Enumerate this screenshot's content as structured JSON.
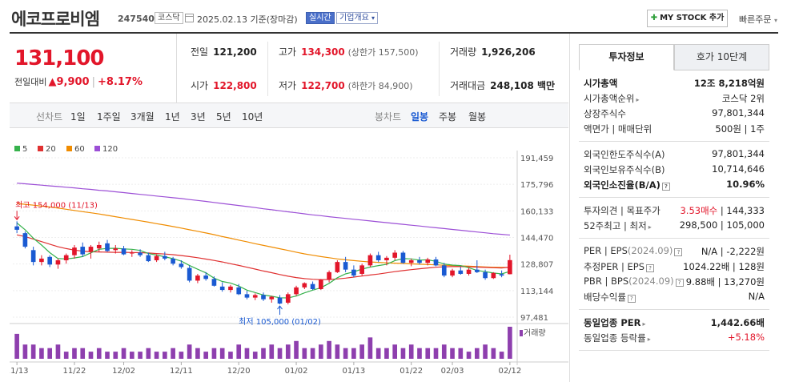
{
  "header": {
    "company_name": "에코프로비엠",
    "code": "247540",
    "market": "코스닥",
    "date_text": "2025.02.13 기준(장마감)",
    "live_badge": "실시간",
    "info_badge": "기업개요",
    "mystock_label": "MY STOCK 추가",
    "quick_order": "빠른주문"
  },
  "price": {
    "current": "131,100",
    "change_label": "전일대비",
    "change": "▲9,900",
    "change_pct": "+8.17%"
  },
  "stats": {
    "prev_close_label": "전일",
    "prev_close": "121,200",
    "high_label": "고가",
    "high": "134,300",
    "upper_limit": "(상한가 157,500)",
    "volume_label": "거래량",
    "volume": "1,926,206",
    "open_label": "시가",
    "open": "122,800",
    "low_label": "저가",
    "low": "122,700",
    "lower_limit": "(하한가 84,900)",
    "amount_label": "거래대금",
    "amount": "248,108 백만"
  },
  "period_bar": {
    "line_label": "선차트",
    "periods": [
      "1일",
      "1주일",
      "3개월",
      "1년",
      "3년",
      "5년",
      "10년"
    ],
    "candle_label": "봉차트",
    "candles": [
      "일봉",
      "주봉",
      "월봉"
    ],
    "active_candle": "일봉"
  },
  "chart_data": {
    "type": "candlestick",
    "legend": [
      {
        "name": "5",
        "color": "#37b24d"
      },
      {
        "name": "20",
        "color": "#e03131"
      },
      {
        "name": "60",
        "color": "#f08c00"
      },
      {
        "name": "120",
        "color": "#9c4fd6"
      }
    ],
    "y_ticks": [
      "191,459",
      "175,796",
      "160,133",
      "144,470",
      "128,807",
      "113,144",
      "97,481"
    ],
    "y_min": 97481,
    "y_max": 191459,
    "x_ticks": [
      {
        "label": "11/13",
        "i": 0
      },
      {
        "label": "11/22",
        "i": 7
      },
      {
        "label": "12/02",
        "i": 13
      },
      {
        "label": "12/11",
        "i": 20
      },
      {
        "label": "12/20",
        "i": 27
      },
      {
        "label": "01/02",
        "i": 34
      },
      {
        "label": "01/13",
        "i": 41
      },
      {
        "label": "01/22",
        "i": 48
      },
      {
        "label": "02/03",
        "i": 53
      },
      {
        "label": "02/12",
        "i": 60
      }
    ],
    "high_annot": "최고 154,000 (11/13)",
    "low_annot": "최저 105,000 (01/02)",
    "volume_label": "거래량",
    "candles": [
      [
        151000,
        154000,
        147000,
        149000
      ],
      [
        147000,
        148000,
        138000,
        139000
      ],
      [
        137000,
        139000,
        128000,
        130000
      ],
      [
        130000,
        134000,
        128000,
        132000
      ],
      [
        133000,
        134000,
        127000,
        128500
      ],
      [
        128500,
        132000,
        126000,
        131000
      ],
      [
        131000,
        135000,
        129000,
        134000
      ],
      [
        134000,
        140000,
        132000,
        138500
      ],
      [
        139000,
        141500,
        133000,
        134500
      ],
      [
        136000,
        140000,
        132000,
        139000
      ],
      [
        138000,
        142000,
        136000,
        140000
      ],
      [
        141000,
        143000,
        136000,
        136500
      ],
      [
        137000,
        140000,
        135000,
        138000
      ],
      [
        138000,
        139500,
        134000,
        134500
      ],
      [
        135000,
        137000,
        133000,
        135500
      ],
      [
        135500,
        137500,
        133000,
        134000
      ],
      [
        134000,
        135500,
        130000,
        130500
      ],
      [
        131000,
        134500,
        130000,
        133500
      ],
      [
        133500,
        136000,
        131000,
        132000
      ],
      [
        132000,
        133000,
        128000,
        129000
      ],
      [
        129000,
        131000,
        126000,
        127000
      ],
      [
        126500,
        128000,
        118000,
        119000
      ],
      [
        119000,
        123000,
        117500,
        122000
      ],
      [
        122000,
        124000,
        119000,
        120000
      ],
      [
        120000,
        121500,
        115500,
        116000
      ],
      [
        115500,
        118000,
        112500,
        113500
      ],
      [
        113500,
        116500,
        112000,
        115500
      ],
      [
        115000,
        117000,
        110500,
        111000
      ],
      [
        111000,
        113000,
        108000,
        109000
      ],
      [
        109000,
        111500,
        107500,
        110500
      ],
      [
        110500,
        112000,
        107000,
        108000
      ],
      [
        108000,
        110000,
        106000,
        109500
      ],
      [
        109000,
        110500,
        105000,
        105500
      ],
      [
        106000,
        112000,
        105000,
        111000
      ],
      [
        111000,
        116000,
        110000,
        115000
      ],
      [
        115000,
        118000,
        114000,
        117500
      ],
      [
        117000,
        118500,
        113500,
        114000
      ],
      [
        114000,
        120000,
        113500,
        119500
      ],
      [
        119500,
        125000,
        118000,
        124000
      ],
      [
        124000,
        131000,
        123500,
        130000
      ],
      [
        130000,
        133000,
        124000,
        125500
      ],
      [
        125500,
        128000,
        121000,
        122000
      ],
      [
        123000,
        129000,
        122000,
        128000
      ],
      [
        128000,
        135000,
        127000,
        134000
      ],
      [
        134000,
        136000,
        130000,
        131000
      ],
      [
        131000,
        133500,
        128000,
        132500
      ],
      [
        132500,
        137000,
        131000,
        135500
      ],
      [
        135500,
        136500,
        129000,
        129500
      ],
      [
        129500,
        132000,
        127500,
        131000
      ],
      [
        131000,
        133000,
        128500,
        129500
      ],
      [
        129500,
        132500,
        128000,
        131500
      ],
      [
        131500,
        133000,
        127500,
        128000
      ],
      [
        128000,
        129500,
        121000,
        122000
      ],
      [
        122000,
        126000,
        121000,
        125000
      ],
      [
        125000,
        127000,
        122500,
        123000
      ],
      [
        123000,
        126500,
        122000,
        125500
      ],
      [
        125500,
        131000,
        123500,
        124000
      ],
      [
        124000,
        125500,
        119500,
        120500
      ],
      [
        120500,
        124000,
        120000,
        123500
      ],
      [
        122800,
        125000,
        121000,
        122000
      ],
      [
        122800,
        134300,
        122700,
        131100
      ]
    ],
    "volumes": [
      7,
      4,
      4,
      3,
      3,
      4,
      2,
      3,
      3,
      2,
      3,
      2,
      2,
      3,
      2,
      2,
      3,
      2,
      2,
      3,
      2,
      4,
      3,
      2,
      3,
      3,
      2,
      4,
      3,
      2,
      3,
      4,
      3,
      4,
      5,
      3,
      3,
      4,
      5,
      4,
      3,
      3,
      4,
      6,
      3,
      3,
      4,
      3,
      4,
      3,
      3,
      3,
      4,
      3,
      3,
      2,
      3,
      4,
      3,
      2,
      9
    ],
    "ma5": [
      153000,
      149000,
      144000,
      140000,
      135500,
      132000,
      131800,
      132400,
      133200,
      135400,
      137500,
      138000,
      138100,
      137700,
      137500,
      136800,
      135000,
      134100,
      133100,
      132000,
      130500,
      128000,
      125700,
      123600,
      120500,
      118500,
      117600,
      115800,
      113400,
      112000,
      110500,
      109800,
      108900,
      108800,
      109900,
      111800,
      113400,
      114800,
      117400,
      120700,
      123000,
      124200,
      125800,
      127000,
      127900,
      128600,
      130800,
      132000,
      131800,
      131100,
      131300,
      130400,
      128800,
      128200,
      127900,
      126600,
      125000,
      124300,
      123500,
      123000,
      124500
    ],
    "ma20": [
      146000,
      145000,
      143500,
      142000,
      140500,
      139000,
      137900,
      137000,
      136400,
      136000,
      135900,
      135800,
      135700,
      135700,
      135600,
      135500,
      135300,
      135000,
      134700,
      134300,
      133800,
      133200,
      132500,
      131700,
      130900,
      130000,
      129000,
      128000,
      126900,
      125800,
      124700,
      123700,
      122600,
      121600,
      120800,
      120200,
      119800,
      119600,
      119700,
      120000,
      120500,
      121100,
      121700,
      122300,
      122900,
      123600,
      124300,
      124900,
      125500,
      126000,
      126500,
      126900,
      127200,
      127300,
      127300,
      127200,
      127000,
      126800,
      126600,
      126500,
      127000
    ],
    "ma60": [
      164500,
      164000,
      163500,
      163000,
      162400,
      161800,
      161100,
      160400,
      159700,
      159000,
      158300,
      157500,
      156700,
      155900,
      155100,
      154300,
      153500,
      152600,
      151800,
      150900,
      150000,
      149000,
      148100,
      147100,
      146100,
      145000,
      144000,
      142900,
      141900,
      140800,
      139800,
      138800,
      137800,
      136800,
      135800,
      134800,
      134000,
      133200,
      132500,
      131800,
      131300,
      130800,
      130400,
      130000,
      129800,
      129500,
      129300,
      129100,
      128900,
      128700,
      128500,
      128300,
      128100,
      127900,
      127700,
      127500,
      127300,
      127100,
      126900,
      126800,
      126700
    ],
    "ma120": [
      176500,
      176100,
      175700,
      175300,
      174900,
      174500,
      174100,
      173700,
      173200,
      172800,
      172300,
      171900,
      171400,
      170900,
      170400,
      169900,
      169400,
      168900,
      168400,
      167900,
      167400,
      166800,
      166300,
      165700,
      165100,
      164500,
      163900,
      163300,
      162700,
      162100,
      161400,
      160800,
      160200,
      159600,
      159000,
      158400,
      157800,
      157300,
      156700,
      156200,
      155700,
      155200,
      154700,
      154200,
      153700,
      153200,
      152700,
      152200,
      151700,
      151200,
      150700,
      150200,
      149700,
      149200,
      148700,
      148200,
      147700,
      147200,
      146700,
      146300,
      145900
    ]
  },
  "right_panel": {
    "tab_active": "투자정보",
    "tab_other": "호가 10단계",
    "sections": [
      [
        {
          "k": "시가총액",
          "v": "12조 8,218억원",
          "kb": true,
          "vb": true
        },
        {
          "k": "시가총액순위",
          "v": "코스닥 2위",
          "arrow": true
        },
        {
          "k": "상장주식수",
          "v": "97,801,344"
        },
        {
          "k": "액면가 | 매매단위",
          "v": "500원 | 1주"
        }
      ],
      [
        {
          "k": "외국인한도주식수(A)",
          "v": "97,801,344"
        },
        {
          "k": "외국인보유주식수(B)",
          "v": "10,714,646"
        },
        {
          "k": "외국인소진율(B/A)",
          "v": "10.96%",
          "kb": true,
          "vb": true,
          "q": true
        }
      ],
      [
        {
          "k": "투자의견 | 목표주가",
          "v_red": "3.53매수",
          "v": "| 144,333"
        },
        {
          "k": "52주최고 | 최저",
          "v": "298,500 | 105,000",
          "arrow": true
        }
      ],
      [
        {
          "k": "PER | EPS",
          "dim": "(2024.09)",
          "v": "N/A | -2,222원",
          "q": true
        },
        {
          "k": "추정PER | EPS",
          "v": "1024.22배 | 128원",
          "q": true
        },
        {
          "k": "PBR | BPS",
          "dim": "(2024.09)",
          "v": "9.88배 | 13,270원",
          "q": true
        },
        {
          "k": "배당수익률",
          "v": "N/A",
          "q": true
        }
      ],
      [
        {
          "k": "동일업종 PER",
          "v": "1,442.66배",
          "kb": true,
          "vb": true,
          "arrow": true
        },
        {
          "k": "동일업종 등락률",
          "v": "+5.18%",
          "red": true,
          "arrow": true
        }
      ]
    ]
  }
}
